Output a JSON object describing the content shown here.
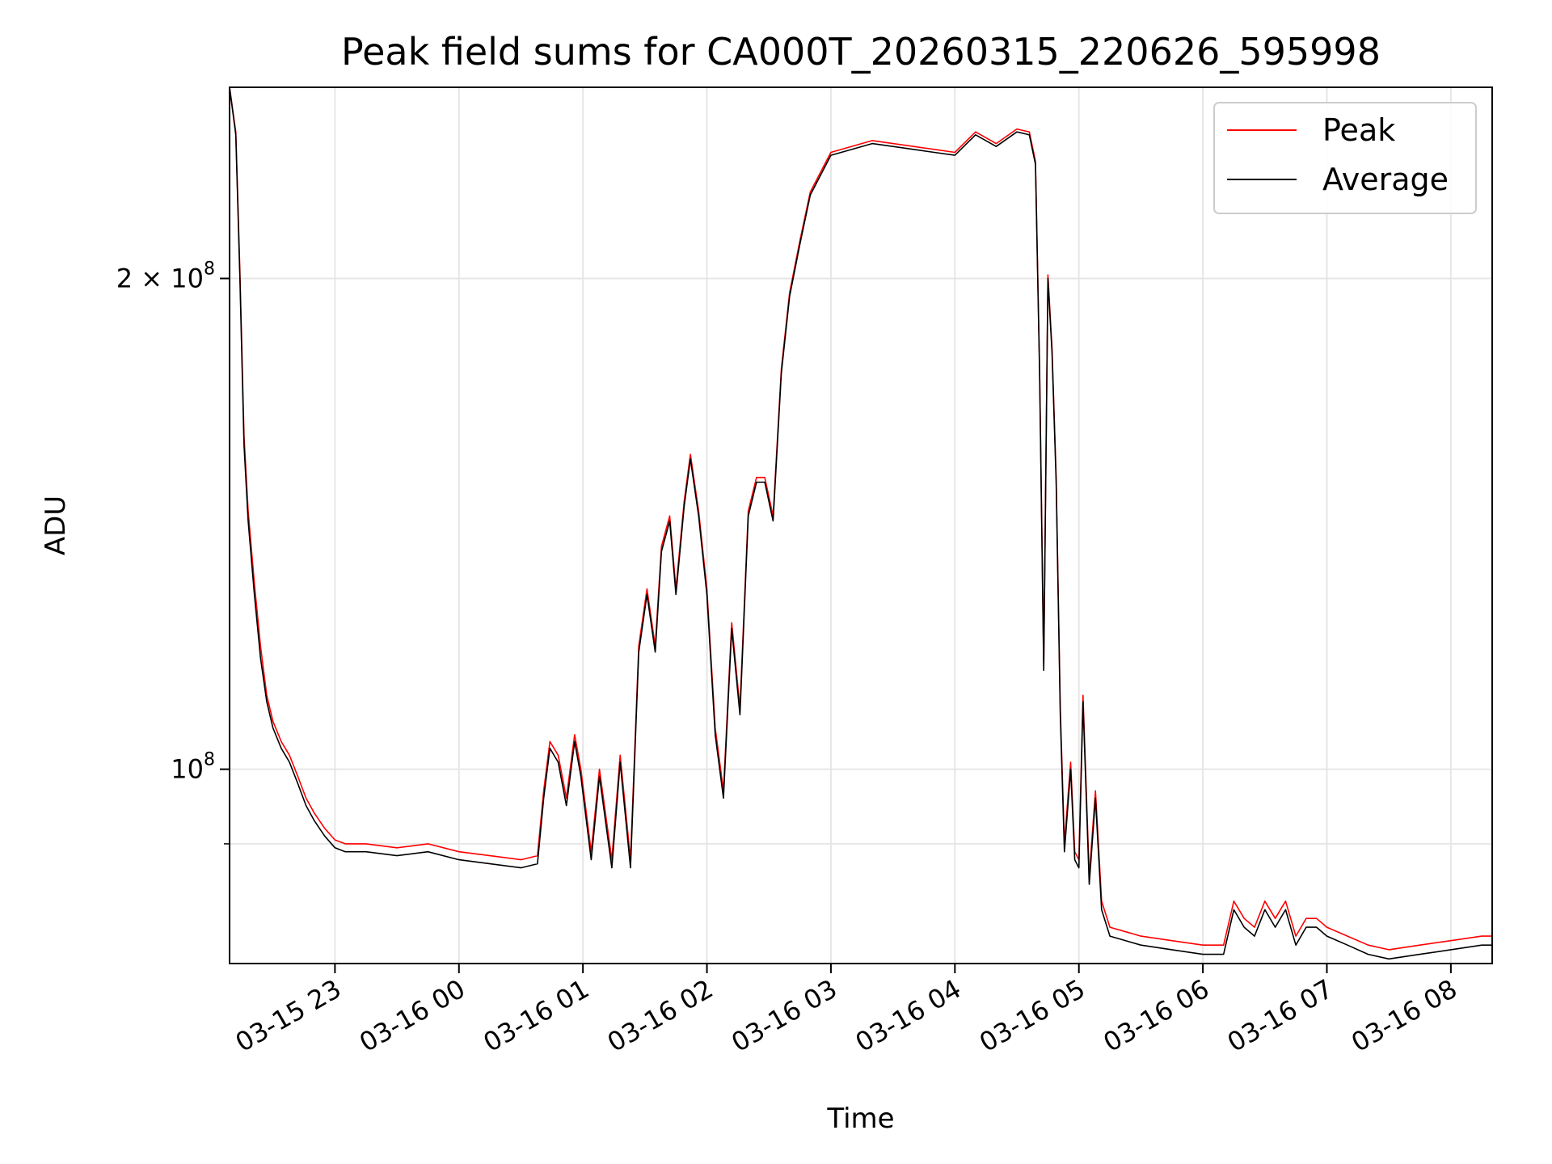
{
  "chart_data": {
    "type": "line",
    "title": "Peak field sums for CA000T_20260315_220626_595998",
    "xlabel": "Time",
    "ylabel": "ADU",
    "y_scale": "log",
    "ylim": [
      76000000,
      262000000
    ],
    "xlim": [
      "2026-03-15 22:09",
      "2026-03-16 08:20"
    ],
    "grid": true,
    "legend": "top-right",
    "x_ticks": [
      {
        "t": "2026-03-15 23:00",
        "label": "03-15 23"
      },
      {
        "t": "2026-03-16 00:00",
        "label": "03-16 00"
      },
      {
        "t": "2026-03-16 01:00",
        "label": "03-16 01"
      },
      {
        "t": "2026-03-16 02:00",
        "label": "03-16 02"
      },
      {
        "t": "2026-03-16 03:00",
        "label": "03-16 03"
      },
      {
        "t": "2026-03-16 04:00",
        "label": "03-16 04"
      },
      {
        "t": "2026-03-16 05:00",
        "label": "03-16 05"
      },
      {
        "t": "2026-03-16 06:00",
        "label": "03-16 06"
      },
      {
        "t": "2026-03-16 07:00",
        "label": "03-16 07"
      },
      {
        "t": "2026-03-16 08:00",
        "label": "03-16 08"
      }
    ],
    "y_ticks": [
      {
        "v": 200000000,
        "base": "2 × 10",
        "exp": "8"
      },
      {
        "v": 100000000,
        "base": "10",
        "exp": "8"
      }
    ],
    "y_minor_grid": [
      90000000
    ],
    "x": [
      "2026-03-15 22:09",
      "2026-03-15 22:12",
      "2026-03-15 22:14",
      "2026-03-15 22:16",
      "2026-03-15 22:18",
      "2026-03-15 22:21",
      "2026-03-15 22:24",
      "2026-03-15 22:27",
      "2026-03-15 22:30",
      "2026-03-15 22:34",
      "2026-03-15 22:38",
      "2026-03-15 22:42",
      "2026-03-15 22:46",
      "2026-03-15 22:50",
      "2026-03-15 22:55",
      "2026-03-15 23:00",
      "2026-03-15 23:05",
      "2026-03-15 23:15",
      "2026-03-15 23:30",
      "2026-03-15 23:45",
      "2026-03-16 00:00",
      "2026-03-16 00:15",
      "2026-03-16 00:30",
      "2026-03-16 00:38",
      "2026-03-16 00:41",
      "2026-03-16 00:44",
      "2026-03-16 00:48",
      "2026-03-16 00:52",
      "2026-03-16 00:56",
      "2026-03-16 00:59",
      "2026-03-16 01:04",
      "2026-03-16 01:08",
      "2026-03-16 01:14",
      "2026-03-16 01:18",
      "2026-03-16 01:23",
      "2026-03-16 01:27",
      "2026-03-16 01:31",
      "2026-03-16 01:35",
      "2026-03-16 01:38",
      "2026-03-16 01:42",
      "2026-03-16 01:45",
      "2026-03-16 01:49",
      "2026-03-16 01:52",
      "2026-03-16 01:56",
      "2026-03-16 02:00",
      "2026-03-16 02:04",
      "2026-03-16 02:08",
      "2026-03-16 02:12",
      "2026-03-16 02:16",
      "2026-03-16 02:20",
      "2026-03-16 02:24",
      "2026-03-16 02:28",
      "2026-03-16 02:32",
      "2026-03-16 02:36",
      "2026-03-16 02:40",
      "2026-03-16 02:45",
      "2026-03-16 02:50",
      "2026-03-16 03:00",
      "2026-03-16 03:20",
      "2026-03-16 03:40",
      "2026-03-16 03:50",
      "2026-03-16 04:00",
      "2026-03-16 04:10",
      "2026-03-16 04:20",
      "2026-03-16 04:30",
      "2026-03-16 04:36",
      "2026-03-16 04:39",
      "2026-03-16 04:41",
      "2026-03-16 04:43",
      "2026-03-16 04:45",
      "2026-03-16 04:47",
      "2026-03-16 04:49",
      "2026-03-16 04:51",
      "2026-03-16 04:53",
      "2026-03-16 04:56",
      "2026-03-16 04:58",
      "2026-03-16 05:00",
      "2026-03-16 05:02",
      "2026-03-16 05:05",
      "2026-03-16 05:08",
      "2026-03-16 05:11",
      "2026-03-16 05:15",
      "2026-03-16 05:30",
      "2026-03-16 05:45",
      "2026-03-16 06:00",
      "2026-03-16 06:10",
      "2026-03-16 06:15",
      "2026-03-16 06:20",
      "2026-03-16 06:25",
      "2026-03-16 06:30",
      "2026-03-16 06:35",
      "2026-03-16 06:40",
      "2026-03-16 06:45",
      "2026-03-16 06:50",
      "2026-03-16 06:55",
      "2026-03-16 07:00",
      "2026-03-16 07:10",
      "2026-03-16 07:20",
      "2026-03-16 07:30",
      "2026-03-16 07:45",
      "2026-03-16 08:00",
      "2026-03-16 08:15",
      "2026-03-16 08:20"
    ],
    "series": [
      {
        "name": "Average",
        "values": [
          262000000,
          245000000,
          200000000,
          158000000,
          142000000,
          128000000,
          117000000,
          110000000,
          106000000,
          103000000,
          101000000,
          98000000,
          95000000,
          93000000,
          91000000,
          89500000,
          89000000,
          89000000,
          88500000,
          89000000,
          88000000,
          87500000,
          87000000,
          87500000,
          96000000,
          103000000,
          101000000,
          95000000,
          104000000,
          99000000,
          88000000,
          99000000,
          87000000,
          101000000,
          87000000,
          118000000,
          128000000,
          118000000,
          136000000,
          142000000,
          128000000,
          145000000,
          155000000,
          143000000,
          128000000,
          105000000,
          96000000,
          122000000,
          108000000,
          143000000,
          150000000,
          150000000,
          142000000,
          175000000,
          195000000,
          210000000,
          225000000,
          238000000,
          242000000,
          240000000,
          239000000,
          238000000,
          245000000,
          241000000,
          246000000,
          245000000,
          235000000,
          175000000,
          115000000,
          200000000,
          180000000,
          150000000,
          108000000,
          89000000,
          100000000,
          88000000,
          87000000,
          110000000,
          85000000,
          96000000,
          82000000,
          79000000,
          78000000,
          77500000,
          77000000,
          77000000,
          82000000,
          80000000,
          79000000,
          82000000,
          80000000,
          82000000,
          78000000,
          80000000,
          80000000,
          79000000,
          78000000,
          77000000,
          76500000,
          77000000,
          77500000,
          78000000,
          78000000
        ]
      },
      {
        "name": "Peak",
        "values": [
          262000000,
          246000000,
          202000000,
          160000000,
          144000000,
          130000000,
          119000000,
          111000000,
          107000000,
          104000000,
          102000000,
          99000000,
          96000000,
          94000000,
          92000000,
          90500000,
          90000000,
          90000000,
          89500000,
          90000000,
          89000000,
          88500000,
          88000000,
          88500000,
          97000000,
          104000000,
          102000000,
          96000000,
          105000000,
          100000000,
          89000000,
          100000000,
          88000000,
          102000000,
          88000000,
          119000000,
          129000000,
          119000000,
          137000000,
          143000000,
          129000000,
          146000000,
          156000000,
          144000000,
          129000000,
          106000000,
          97000000,
          123000000,
          109000000,
          144000000,
          151000000,
          151000000,
          143000000,
          176000000,
          196000000,
          211000000,
          226000000,
          239000000,
          243000000,
          241000000,
          240000000,
          239000000,
          246000000,
          242000000,
          247000000,
          246000000,
          236000000,
          176000000,
          116000000,
          201000000,
          181000000,
          151000000,
          109000000,
          90000000,
          101000000,
          89000000,
          88000000,
          111000000,
          86000000,
          97000000,
          83000000,
          80000000,
          79000000,
          78500000,
          78000000,
          78000000,
          83000000,
          81000000,
          80000000,
          83000000,
          81000000,
          83000000,
          79000000,
          81000000,
          81000000,
          80000000,
          79000000,
          78000000,
          77500000,
          78000000,
          78500000,
          79000000,
          79000000
        ]
      }
    ],
    "colors": {
      "Peak": "#ff0000",
      "Average": "#000000"
    },
    "legend_entries": [
      "Peak",
      "Average"
    ]
  }
}
